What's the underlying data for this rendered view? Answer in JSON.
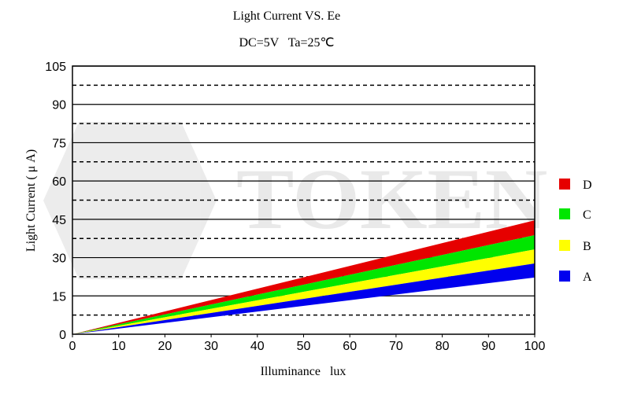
{
  "chart_data": {
    "type": "area",
    "title": "Light Current VS. Ee",
    "subtitle": "DC=5V   Ta=25℃",
    "xlabel": "Illuminance   lux",
    "ylabel": "Light Current ( μ A)",
    "xlim": [
      0,
      100
    ],
    "ylim": [
      0,
      105
    ],
    "xticks": [
      0,
      10,
      20,
      30,
      40,
      50,
      60,
      70,
      80,
      90,
      100
    ],
    "yticks": [
      0,
      15,
      30,
      45,
      60,
      75,
      90,
      105
    ],
    "grid": {
      "solid": [
        15,
        30,
        45,
        60,
        75,
        90,
        105
      ],
      "dashed": [
        7.5,
        22.5,
        37.5,
        52.5,
        67.5,
        82.5,
        97.5
      ]
    },
    "legend_placement": "right",
    "series": [
      {
        "name": "D",
        "color": "#e60000",
        "x": [
          0,
          100
        ],
        "lower": [
          0,
          38.8
        ],
        "upper": [
          0,
          44.6
        ]
      },
      {
        "name": "C",
        "color": "#00e600",
        "x": [
          0,
          100
        ],
        "lower": [
          0,
          33.2
        ],
        "upper": [
          0,
          38.8
        ]
      },
      {
        "name": "B",
        "color": "#ffff00",
        "x": [
          0,
          100
        ],
        "lower": [
          0,
          27.7
        ],
        "upper": [
          0,
          33.2
        ]
      },
      {
        "name": "A",
        "color": "#0000ee",
        "x": [
          0,
          100
        ],
        "lower": [
          0,
          22.2
        ],
        "upper": [
          0,
          27.7
        ]
      }
    ],
    "watermark": "TOKEN"
  }
}
